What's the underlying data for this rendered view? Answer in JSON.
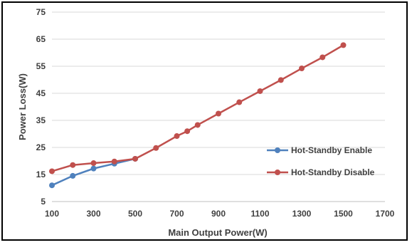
{
  "chart_data": {
    "type": "line",
    "title": "",
    "xlabel": "Main Output Power(W)",
    "ylabel": "Power Loss(W)",
    "xlim": [
      100,
      1700
    ],
    "ylim": [
      5,
      75
    ],
    "x_ticks": [
      100,
      300,
      500,
      700,
      900,
      1100,
      1300,
      1500,
      1700
    ],
    "y_ticks": [
      5,
      15,
      25,
      35,
      45,
      55,
      65,
      75
    ],
    "grid": true,
    "legend_position": "right",
    "series": [
      {
        "name": "Hot-Standby Enable",
        "color": "#4f81bd",
        "x": [
          100,
          200,
          300,
          400,
          500
        ],
        "y": [
          11,
          14.5,
          17.2,
          19,
          20.8
        ]
      },
      {
        "name": "Hot-Standby Disable",
        "color": "#c0504d",
        "x": [
          100,
          200,
          300,
          400,
          500,
          600,
          700,
          750,
          800,
          900,
          1000,
          1100,
          1200,
          1300,
          1400,
          1500
        ],
        "y": [
          16.2,
          18.5,
          19.2,
          19.8,
          20.8,
          24.8,
          29.2,
          31,
          33.3,
          37.5,
          41.7,
          45.8,
          49.9,
          54.2,
          58.3,
          62.8
        ]
      }
    ]
  }
}
